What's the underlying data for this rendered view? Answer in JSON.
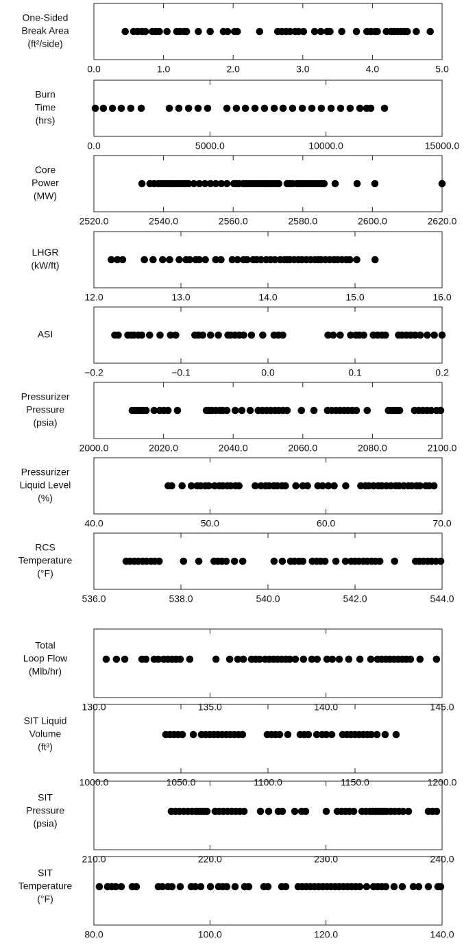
{
  "chart_data": [
    {
      "type": "strip",
      "label": [
        "One-Sided",
        "Break Area",
        "(ft²/side)"
      ],
      "color": "#000000",
      "xlim": [
        0,
        5
      ],
      "xticks": [
        {
          "value": 0,
          "label": "0.0"
        },
        {
          "value": 1,
          "label": "1.0"
        },
        {
          "value": 2,
          "label": "2.0"
        },
        {
          "value": 3,
          "label": "3.0"
        },
        {
          "value": 4,
          "label": "4.0"
        },
        {
          "value": 5,
          "label": "5.0"
        }
      ],
      "values": [
        0.45,
        0.57,
        0.63,
        0.69,
        0.74,
        0.84,
        0.89,
        0.94,
        1.05,
        1.19,
        1.24,
        1.3,
        1.33,
        1.5,
        1.67,
        1.86,
        1.92,
        2.02,
        2.06,
        2.38,
        2.64,
        2.7,
        2.76,
        2.82,
        2.89,
        2.94,
        3.01,
        3.17,
        3.26,
        3.35,
        3.39,
        3.56,
        3.77,
        3.92,
        3.98,
        4.04,
        4.07,
        4.2,
        4.27,
        4.31,
        4.36,
        4.41,
        4.46,
        4.5,
        4.63,
        4.83
      ]
    },
    {
      "type": "strip",
      "label": [
        "Burn",
        "Time",
        "(hrs)"
      ],
      "color": "#000000",
      "xlim": [
        0,
        15000
      ],
      "xticks": [
        {
          "value": 0,
          "label": "0.0"
        },
        {
          "value": 5000,
          "label": "5000.0"
        },
        {
          "value": 10000,
          "label": "10000.0"
        },
        {
          "value": 15000,
          "label": "15000.0"
        }
      ],
      "values": [
        60,
        410,
        800,
        1180,
        1590,
        2040,
        3250,
        3660,
        4080,
        4490,
        4900,
        5730,
        6140,
        6530,
        6940,
        7350,
        7770,
        8150,
        8560,
        8980,
        9390,
        9800,
        10220,
        10630,
        11040,
        11460,
        11750,
        11930,
        12520
      ]
    },
    {
      "type": "strip",
      "label": [
        "Core",
        "Power",
        "(MW)"
      ],
      "color": "#000000",
      "xlim": [
        2520,
        2620
      ],
      "xticks": [
        {
          "value": 2520,
          "label": "2520.0"
        },
        {
          "value": 2540,
          "label": "2540.0"
        },
        {
          "value": 2560,
          "label": "2560.0"
        },
        {
          "value": 2580,
          "label": "2580.0"
        },
        {
          "value": 2600,
          "label": "2600.0"
        },
        {
          "value": 2620,
          "label": "2620.0"
        }
      ],
      "values": [
        2533.8,
        2536.1,
        2537.3,
        2538.5,
        2539.3,
        2540.1,
        2540.9,
        2541.7,
        2542.4,
        2543.2,
        2544.0,
        2544.8,
        2545.6,
        2546.4,
        2547.2,
        2548.7,
        2550.3,
        2551.9,
        2553.5,
        2555.0,
        2556.6,
        2558.2,
        2560.2,
        2560.9,
        2561.7,
        2562.9,
        2563.7,
        2564.5,
        2565.3,
        2566.1,
        2566.9,
        2567.7,
        2568.5,
        2569.2,
        2570.0,
        2570.8,
        2571.6,
        2572.4,
        2573.1,
        2575.5,
        2576.3,
        2577.1,
        2578.3,
        2579.1,
        2579.8,
        2580.6,
        2581.4,
        2582.2,
        2583.0,
        2583.8,
        2584.6,
        2585.4,
        2586.1,
        2589.3,
        2595.6,
        2600.7,
        2620.0
      ]
    },
    {
      "type": "strip",
      "label": [
        "LHGR",
        "(kW/ft)"
      ],
      "color": "#000000",
      "xlim": [
        12,
        16
      ],
      "xticks": [
        {
          "value": 12,
          "label": "12.0"
        },
        {
          "value": 13,
          "label": "13.0"
        },
        {
          "value": 14,
          "label": "14.0"
        },
        {
          "value": 15,
          "label": "15.0"
        },
        {
          "value": 16,
          "label": "16.0"
        }
      ],
      "values": [
        12.2,
        12.27,
        12.33,
        12.58,
        12.68,
        12.79,
        12.87,
        12.98,
        13.06,
        13.1,
        13.17,
        13.21,
        13.28,
        13.4,
        13.46,
        13.59,
        13.65,
        13.72,
        13.76,
        13.83,
        13.87,
        13.92,
        13.98,
        14.03,
        14.08,
        14.14,
        14.19,
        14.22,
        14.25,
        14.3,
        14.35,
        14.39,
        14.44,
        14.49,
        14.54,
        14.58,
        14.61,
        14.66,
        14.71,
        14.76,
        14.8,
        14.85,
        14.9,
        14.94,
        15.02,
        15.23
      ]
    },
    {
      "type": "strip",
      "label": [
        "ASI"
      ],
      "color": "#000000",
      "xlim": [
        -0.2,
        0.2
      ],
      "xticks": [
        {
          "value": -0.2,
          "label": "−0.2"
        },
        {
          "value": -0.1,
          "label": "−0.1"
        },
        {
          "value": 0,
          "label": "0.0"
        },
        {
          "value": 0.1,
          "label": "0.1"
        },
        {
          "value": 0.2,
          "label": "0.2"
        }
      ],
      "values": [
        -0.176,
        -0.172,
        -0.161,
        -0.157,
        -0.154,
        -0.149,
        -0.145,
        -0.136,
        -0.124,
        -0.112,
        -0.106,
        -0.084,
        -0.08,
        -0.075,
        -0.066,
        -0.057,
        -0.046,
        -0.043,
        -0.038,
        -0.033,
        -0.028,
        -0.019,
        -0.006,
        0.007,
        0.012,
        0.017,
        0.069,
        0.075,
        0.083,
        0.095,
        0.101,
        0.105,
        0.11,
        0.121,
        0.126,
        0.131,
        0.135,
        0.15,
        0.154,
        0.159,
        0.164,
        0.169,
        0.175,
        0.183,
        0.191,
        0.2
      ]
    },
    {
      "type": "strip",
      "label": [
        "Pressurizer",
        "Pressure",
        "(psia)"
      ],
      "color": "#000000",
      "xlim": [
        2000,
        2100
      ],
      "xticks": [
        {
          "value": 2000,
          "label": "2000.0"
        },
        {
          "value": 2020,
          "label": "2020.0"
        },
        {
          "value": 2040,
          "label": "2040.0"
        },
        {
          "value": 2060,
          "label": "2060.0"
        },
        {
          "value": 2080,
          "label": "2080.0"
        },
        {
          "value": 2100,
          "label": "2100.0"
        }
      ],
      "values": [
        2011.0,
        2011.8,
        2012.6,
        2013.4,
        2014.2,
        2015.0,
        2017.3,
        2018.9,
        2020.1,
        2021.3,
        2024.0,
        2032.3,
        2033.1,
        2033.9,
        2035.0,
        2036.2,
        2037.0,
        2038.2,
        2040.6,
        2042.5,
        2044.9,
        2047.2,
        2048.4,
        2049.6,
        2050.8,
        2052.0,
        2053.1,
        2054.3,
        2055.5,
        2059.6,
        2063.2,
        2067.1,
        2068.3,
        2069.5,
        2070.7,
        2071.9,
        2073.0,
        2074.2,
        2075.4,
        2078.5,
        2084.6,
        2085.4,
        2086.2,
        2087.0,
        2087.8,
        2092.1,
        2093.3,
        2094.5,
        2095.7,
        2096.9,
        2098.4,
        2099.6
      ]
    },
    {
      "type": "strip",
      "label": [
        "Pressurizer",
        "Liquid Level",
        "(%)"
      ],
      "color": "#000000",
      "xlim": [
        40,
        70
      ],
      "xticks": [
        {
          "value": 40,
          "label": "40.0"
        },
        {
          "value": 50,
          "label": "50.0"
        },
        {
          "value": 60,
          "label": "60.0"
        },
        {
          "value": 70,
          "label": "70.0"
        }
      ],
      "values": [
        46.4,
        46.7,
        47.6,
        48.4,
        48.9,
        49.2,
        49.6,
        49.9,
        50.4,
        50.8,
        51.1,
        51.5,
        51.8,
        52.2,
        52.5,
        53.9,
        54.4,
        54.8,
        55.1,
        55.5,
        55.8,
        56.2,
        56.5,
        57.4,
        58.0,
        58.4,
        59.3,
        59.7,
        60.2,
        60.7,
        61.7,
        63.0,
        63.4,
        63.7,
        64.1,
        64.5,
        64.8,
        65.2,
        65.6,
        66.0,
        66.3,
        66.7,
        67.1,
        67.4,
        67.8,
        68.1,
        68.6,
        68.9,
        69.3
      ]
    },
    {
      "type": "strip",
      "label": [
        "RCS",
        "Temperature",
        "(°F)"
      ],
      "color": "#000000",
      "xlim": [
        536,
        544
      ],
      "xticks": [
        {
          "value": 536,
          "label": "536.0"
        },
        {
          "value": 538,
          "label": "538.0"
        },
        {
          "value": 540,
          "label": "540.0"
        },
        {
          "value": 542,
          "label": "542.0"
        },
        {
          "value": 544,
          "label": "544.0"
        }
      ],
      "values": [
        536.74,
        536.83,
        536.93,
        537.02,
        537.12,
        537.21,
        537.31,
        537.4,
        537.5,
        538.06,
        538.41,
        538.76,
        538.85,
        538.94,
        539.04,
        539.23,
        539.42,
        540.14,
        540.33,
        540.52,
        540.61,
        540.71,
        540.8,
        541.02,
        541.12,
        541.21,
        541.31,
        541.56,
        541.78,
        541.91,
        542.0,
        542.09,
        542.19,
        542.28,
        542.38,
        542.47,
        542.57,
        542.91,
        543.39,
        543.48,
        543.57,
        543.67,
        543.76,
        543.86,
        543.97
      ]
    },
    {
      "type": "strip",
      "label": [
        "Total",
        "Loop Flow",
        "(Mlb/hr)"
      ],
      "color": "#000000",
      "xlim": [
        130,
        145
      ],
      "xticks": [
        {
          "value": 130,
          "label": "130.0"
        },
        {
          "value": 135,
          "label": "135.0"
        },
        {
          "value": 140,
          "label": "140.0"
        },
        {
          "value": 145,
          "label": "145.0"
        }
      ],
      "values": [
        130.53,
        130.97,
        131.33,
        132.07,
        132.24,
        132.6,
        132.78,
        133.01,
        133.19,
        133.37,
        133.54,
        133.72,
        134.13,
        135.26,
        135.85,
        136.2,
        136.44,
        136.79,
        136.97,
        137.14,
        137.38,
        137.56,
        137.74,
        137.91,
        138.09,
        138.27,
        138.44,
        138.68,
        139.03,
        139.39,
        139.62,
        140.04,
        140.27,
        140.57,
        140.98,
        141.46,
        141.93,
        142.22,
        142.4,
        142.58,
        142.75,
        142.93,
        143.11,
        143.29,
        143.46,
        143.64,
        144.05,
        144.76
      ]
    },
    {
      "type": "strip",
      "label": [
        "SIT Liquid",
        "Volume",
        "(ft³)"
      ],
      "color": "#000000",
      "xlim": [
        1000,
        1200
      ],
      "xticks": [
        {
          "value": 1000,
          "label": "1000.0"
        },
        {
          "value": 1050,
          "label": "1050.0"
        },
        {
          "value": 1100,
          "label": "1100.0"
        },
        {
          "value": 1150,
          "label": "1150.0"
        },
        {
          "value": 1200,
          "label": "1200.0"
        }
      ],
      "values": [
        1041.3,
        1043.7,
        1046.1,
        1048.4,
        1050.8,
        1057.1,
        1061.8,
        1064.2,
        1066.5,
        1068.9,
        1071.3,
        1073.6,
        1076.0,
        1078.3,
        1080.7,
        1083.1,
        1085.4,
        1099.6,
        1102.0,
        1104.3,
        1106.7,
        1111.4,
        1118.5,
        1120.9,
        1123.2,
        1128.0,
        1131.1,
        1133.5,
        1136.6,
        1142.9,
        1145.3,
        1147.6,
        1150.0,
        1152.4,
        1154.7,
        1157.1,
        1159.4,
        1162.6,
        1167.3,
        1173.6
      ]
    },
    {
      "type": "strip",
      "label": [
        "SIT",
        "Pressure",
        "(psia)"
      ],
      "color": "#000000",
      "xlim": [
        210,
        240
      ],
      "xticks": [
        {
          "value": 210,
          "label": "210.0"
        },
        {
          "value": 220,
          "label": "220.0"
        },
        {
          "value": 230,
          "label": "230.0"
        },
        {
          "value": 240,
          "label": "240.0"
        }
      ],
      "values": [
        216.67,
        217.03,
        217.38,
        217.74,
        218.09,
        218.45,
        218.8,
        219.04,
        219.27,
        219.51,
        219.75,
        220.45,
        220.81,
        221.16,
        221.52,
        221.87,
        222.23,
        222.58,
        222.94,
        224.35,
        225.06,
        225.89,
        226.24,
        227.31,
        227.9,
        228.25,
        230.02,
        230.97,
        231.32,
        231.68,
        232.03,
        232.39,
        233.1,
        233.45,
        233.8,
        234.04,
        234.28,
        234.51,
        234.75,
        234.99,
        235.22,
        235.58,
        235.93,
        236.29,
        236.64,
        237.11,
        238.82,
        239.18,
        239.53
      ]
    },
    {
      "type": "strip",
      "label": [
        "SIT",
        "Temperature",
        "(°F)"
      ],
      "color": "#000000",
      "xlim": [
        80,
        140
      ],
      "xticks": [
        {
          "value": 80,
          "label": "80.0"
        },
        {
          "value": 100,
          "label": "100.0"
        },
        {
          "value": 120,
          "label": "120.0"
        },
        {
          "value": 140,
          "label": "140.0"
        }
      ],
      "values": [
        80.94,
        82.36,
        83.07,
        83.78,
        84.72,
        86.61,
        87.32,
        91.1,
        91.81,
        92.76,
        93.46,
        94.88,
        96.77,
        97.48,
        98.42,
        100.08,
        101.49,
        102.2,
        102.91,
        104.33,
        105.98,
        106.69,
        109.29,
        110.0,
        112.36,
        113.07,
        115.2,
        115.9,
        116.61,
        117.32,
        118.03,
        118.74,
        119.45,
        120.16,
        120.86,
        121.57,
        122.28,
        122.99,
        123.7,
        124.41,
        125.12,
        125.82,
        127.0,
        128.19,
        128.9,
        129.6,
        130.31,
        131.73,
        133.15,
        135.04,
        135.98,
        137.64,
        139.29,
        139.76
      ]
    }
  ]
}
